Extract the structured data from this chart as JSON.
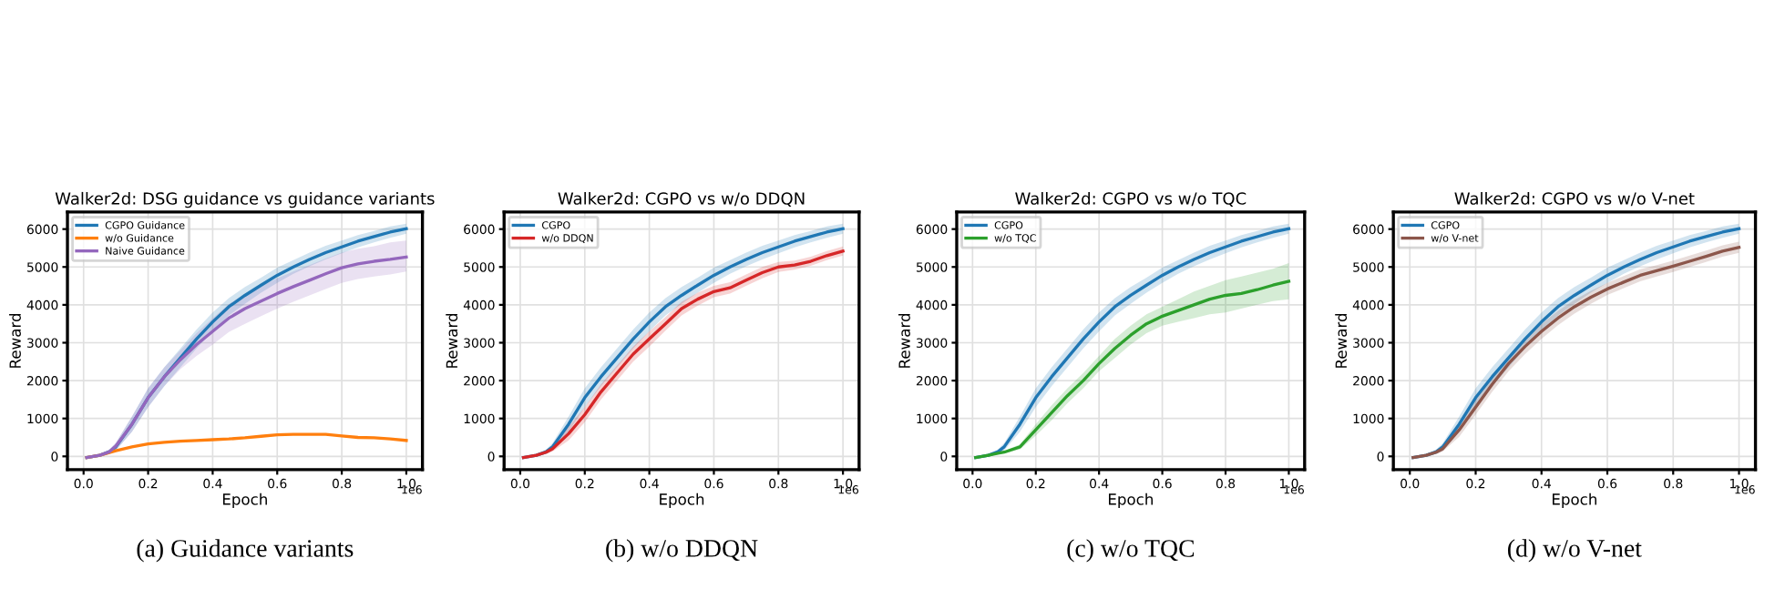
{
  "chart_data": [
    {
      "type": "line",
      "title": "Walker2d: DSG guidance vs guidance variants",
      "xlabel": "Epoch",
      "ylabel": "Reward",
      "annotations": [
        "1e6",
        "(a) Guidance variants"
      ],
      "x": [
        0.01,
        0.05,
        0.08,
        0.1,
        0.15,
        0.2,
        0.25,
        0.3,
        0.35,
        0.4,
        0.45,
        0.5,
        0.55,
        0.6,
        0.65,
        0.7,
        0.75,
        0.8,
        0.85,
        0.9,
        0.95,
        1.0
      ],
      "series": [
        {
          "name": "CGPO Guidance",
          "color": "#1f77b4",
          "values": [
            -30,
            30,
            120,
            250,
            850,
            1550,
            2100,
            2600,
            3100,
            3550,
            3950,
            4250,
            4520,
            4780,
            5000,
            5200,
            5380,
            5530,
            5680,
            5800,
            5920,
            6010
          ],
          "lower": [
            -50,
            0,
            60,
            150,
            650,
            1300,
            1850,
            2350,
            2850,
            3300,
            3720,
            4030,
            4320,
            4580,
            4820,
            5020,
            5200,
            5360,
            5520,
            5650,
            5770,
            5880
          ],
          "upper": [
            -10,
            60,
            180,
            350,
            1050,
            1800,
            2350,
            2850,
            3350,
            3800,
            4180,
            4470,
            4720,
            4980,
            5180,
            5380,
            5560,
            5700,
            5840,
            5950,
            6070,
            6140
          ]
        },
        {
          "name": "w/o Guidance",
          "color": "#ff7f0e",
          "values": [
            -30,
            30,
            100,
            150,
            250,
            330,
            370,
            400,
            420,
            440,
            460,
            490,
            530,
            570,
            580,
            580,
            580,
            540,
            500,
            490,
            460,
            420
          ]
        },
        {
          "name": "Naive Guidance",
          "color": "#9467bd",
          "values": [
            -30,
            30,
            120,
            270,
            850,
            1550,
            2100,
            2550,
            2950,
            3300,
            3650,
            3900,
            4100,
            4300,
            4480,
            4650,
            4820,
            4980,
            5080,
            5150,
            5200,
            5260
          ],
          "lower": [
            -50,
            0,
            60,
            170,
            650,
            1300,
            1850,
            2300,
            2650,
            2950,
            3280,
            3500,
            3700,
            3900,
            4080,
            4250,
            4420,
            4580,
            4680,
            4750,
            4800,
            4880
          ],
          "upper": [
            -10,
            60,
            180,
            370,
            1050,
            1800,
            2350,
            2800,
            3250,
            3650,
            4020,
            4300,
            4500,
            4700,
            4880,
            5050,
            5220,
            5380,
            5480,
            5550,
            5650,
            5700
          ]
        }
      ],
      "xlim": [
        -0.05,
        1.05
      ],
      "ylim": [
        -350,
        6450
      ],
      "xticks": [
        {
          "value": 0,
          "label": "0.0"
        },
        {
          "value": 0.2,
          "label": "0.2"
        },
        {
          "value": 0.4,
          "label": "0.4"
        },
        {
          "value": 0.6,
          "label": "0.6"
        },
        {
          "value": 0.8,
          "label": "0.8"
        },
        {
          "value": 1,
          "label": "1.0"
        }
      ],
      "yticks": [
        0,
        1000,
        2000,
        3000,
        4000,
        5000,
        6000
      ],
      "grid": true,
      "legend": "top left",
      "line_style": "solid",
      "marker": "none"
    },
    {
      "type": "line",
      "title": "Walker2d: CGPO vs w/o DDQN",
      "xlabel": "Epoch",
      "ylabel": "Reward",
      "annotations": [
        "1e6",
        "(b) w/o DDQN"
      ],
      "x": [
        0.01,
        0.05,
        0.08,
        0.1,
        0.15,
        0.2,
        0.25,
        0.3,
        0.35,
        0.4,
        0.45,
        0.5,
        0.55,
        0.6,
        0.65,
        0.7,
        0.75,
        0.8,
        0.85,
        0.9,
        0.95,
        1.0
      ],
      "series": [
        {
          "name": "CGPO",
          "color": "#1f77b4",
          "values": [
            -30,
            30,
            120,
            250,
            850,
            1550,
            2100,
            2600,
            3100,
            3550,
            3950,
            4250,
            4520,
            4780,
            5000,
            5200,
            5380,
            5530,
            5680,
            5800,
            5920,
            6010
          ],
          "lower": [
            -50,
            0,
            60,
            150,
            650,
            1300,
            1850,
            2350,
            2850,
            3300,
            3720,
            4030,
            4320,
            4580,
            4820,
            5020,
            5200,
            5360,
            5520,
            5650,
            5770,
            5880
          ],
          "upper": [
            -10,
            60,
            180,
            350,
            1050,
            1800,
            2350,
            2850,
            3350,
            3800,
            4180,
            4470,
            4720,
            4980,
            5180,
            5380,
            5560,
            5700,
            5840,
            5950,
            6070,
            6140
          ]
        },
        {
          "name": "w/o DDQN",
          "color": "#d62728",
          "values": [
            -30,
            30,
            110,
            200,
            600,
            1100,
            1700,
            2200,
            2700,
            3100,
            3500,
            3900,
            4150,
            4350,
            4450,
            4650,
            4850,
            5000,
            5050,
            5150,
            5300,
            5420
          ],
          "lower": [
            -50,
            0,
            60,
            130,
            420,
            900,
            1500,
            2000,
            2500,
            2900,
            3320,
            3720,
            3980,
            4200,
            4300,
            4500,
            4700,
            4870,
            4930,
            5030,
            5180,
            5300
          ],
          "upper": [
            -10,
            60,
            160,
            270,
            780,
            1300,
            1900,
            2400,
            2900,
            3300,
            3680,
            4080,
            4320,
            4500,
            4600,
            4800,
            5000,
            5130,
            5170,
            5270,
            5420,
            5540
          ]
        }
      ],
      "xlim": [
        -0.05,
        1.05
      ],
      "ylim": [
        -350,
        6450
      ],
      "xticks": [
        {
          "value": 0,
          "label": "0.0"
        },
        {
          "value": 0.2,
          "label": "0.2"
        },
        {
          "value": 0.4,
          "label": "0.4"
        },
        {
          "value": 0.6,
          "label": "0.6"
        },
        {
          "value": 0.8,
          "label": "0.8"
        },
        {
          "value": 1,
          "label": "1.0"
        }
      ],
      "yticks": [
        0,
        1000,
        2000,
        3000,
        4000,
        5000,
        6000
      ],
      "grid": true,
      "legend": "top left",
      "line_style": "solid",
      "marker": "none"
    },
    {
      "type": "line",
      "title": "Walker2d: CGPO vs w/o TQC",
      "xlabel": "Epoch",
      "ylabel": "Reward",
      "annotations": [
        "1e6",
        "(c) w/o TQC"
      ],
      "x": [
        0.01,
        0.05,
        0.08,
        0.1,
        0.15,
        0.2,
        0.25,
        0.3,
        0.35,
        0.4,
        0.45,
        0.5,
        0.55,
        0.6,
        0.65,
        0.7,
        0.75,
        0.8,
        0.85,
        0.9,
        0.95,
        1.0
      ],
      "series": [
        {
          "name": "CGPO",
          "color": "#1f77b4",
          "values": [
            -30,
            30,
            120,
            250,
            850,
            1550,
            2100,
            2600,
            3100,
            3550,
            3950,
            4250,
            4520,
            4780,
            5000,
            5200,
            5380,
            5530,
            5680,
            5800,
            5920,
            6010
          ],
          "lower": [
            -50,
            0,
            60,
            150,
            650,
            1300,
            1850,
            2350,
            2850,
            3300,
            3720,
            4030,
            4320,
            4580,
            4820,
            5020,
            5200,
            5360,
            5520,
            5650,
            5770,
            5880
          ],
          "upper": [
            -10,
            60,
            180,
            350,
            1050,
            1800,
            2350,
            2850,
            3350,
            3800,
            4180,
            4470,
            4720,
            4980,
            5180,
            5380,
            5560,
            5700,
            5840,
            5950,
            6070,
            6140
          ]
        },
        {
          "name": "w/o TQC",
          "color": "#2ca02c",
          "values": [
            -30,
            30,
            80,
            110,
            250,
            700,
            1150,
            1600,
            2000,
            2450,
            2850,
            3200,
            3500,
            3700,
            3850,
            4000,
            4150,
            4250,
            4300,
            4400,
            4520,
            4620
          ],
          "lower": [
            -50,
            0,
            50,
            80,
            180,
            550,
            950,
            1400,
            1800,
            2250,
            2600,
            2950,
            3250,
            3450,
            3550,
            3650,
            3750,
            3800,
            3900,
            4000,
            4100,
            4150
          ],
          "upper": [
            -10,
            60,
            110,
            140,
            320,
            850,
            1350,
            1800,
            2200,
            2650,
            3100,
            3450,
            3750,
            3950,
            4150,
            4350,
            4500,
            4650,
            4750,
            4850,
            4950,
            5100
          ]
        }
      ],
      "xlim": [
        -0.05,
        1.05
      ],
      "ylim": [
        -350,
        6450
      ],
      "xticks": [
        {
          "value": 0,
          "label": "0.0"
        },
        {
          "value": 0.2,
          "label": "0.2"
        },
        {
          "value": 0.4,
          "label": "0.4"
        },
        {
          "value": 0.6,
          "label": "0.6"
        },
        {
          "value": 0.8,
          "label": "0.8"
        },
        {
          "value": 1,
          "label": "1.0"
        }
      ],
      "yticks": [
        0,
        1000,
        2000,
        3000,
        4000,
        5000,
        6000
      ],
      "grid": true,
      "legend": "top left",
      "line_style": "solid",
      "marker": "none"
    },
    {
      "type": "line",
      "title": "Walker2d: CGPO vs w/o V-net",
      "xlabel": "Epoch",
      "ylabel": "Reward",
      "annotations": [
        "1e6",
        "(d) w/o V-net"
      ],
      "x": [
        0.01,
        0.05,
        0.08,
        0.1,
        0.15,
        0.2,
        0.25,
        0.3,
        0.35,
        0.4,
        0.45,
        0.5,
        0.55,
        0.6,
        0.65,
        0.7,
        0.75,
        0.8,
        0.85,
        0.9,
        0.95,
        1.0
      ],
      "series": [
        {
          "name": "CGPO",
          "color": "#1f77b4",
          "values": [
            -30,
            30,
            120,
            250,
            850,
            1550,
            2100,
            2600,
            3100,
            3550,
            3950,
            4250,
            4520,
            4780,
            5000,
            5200,
            5380,
            5530,
            5680,
            5800,
            5920,
            6010
          ],
          "lower": [
            -50,
            0,
            60,
            150,
            650,
            1300,
            1850,
            2350,
            2850,
            3300,
            3720,
            4030,
            4320,
            4580,
            4820,
            5020,
            5200,
            5360,
            5520,
            5650,
            5770,
            5880
          ],
          "upper": [
            -10,
            60,
            180,
            350,
            1050,
            1800,
            2350,
            2850,
            3350,
            3800,
            4180,
            4470,
            4720,
            4980,
            5180,
            5380,
            5560,
            5700,
            5840,
            5950,
            6070,
            6140
          ]
        },
        {
          "name": "w/o V-net",
          "color": "#8c564b",
          "values": [
            -30,
            30,
            110,
            200,
            700,
            1300,
            1900,
            2450,
            2900,
            3300,
            3650,
            3950,
            4200,
            4420,
            4600,
            4780,
            4900,
            5020,
            5150,
            5280,
            5420,
            5520
          ],
          "lower": [
            -50,
            0,
            60,
            130,
            520,
            1100,
            1700,
            2250,
            2700,
            3100,
            3460,
            3770,
            4030,
            4260,
            4440,
            4620,
            4750,
            4870,
            5000,
            5130,
            5270,
            5370
          ],
          "upper": [
            -10,
            60,
            160,
            270,
            880,
            1500,
            2100,
            2650,
            3100,
            3500,
            3840,
            4130,
            4370,
            4580,
            4760,
            4940,
            5050,
            5170,
            5300,
            5430,
            5570,
            5670
          ]
        }
      ],
      "xlim": [
        -0.05,
        1.05
      ],
      "ylim": [
        -350,
        6450
      ],
      "xticks": [
        {
          "value": 0,
          "label": "0.0"
        },
        {
          "value": 0.2,
          "label": "0.2"
        },
        {
          "value": 0.4,
          "label": "0.4"
        },
        {
          "value": 0.6,
          "label": "0.6"
        },
        {
          "value": 0.8,
          "label": "0.8"
        },
        {
          "value": 1,
          "label": "1.0"
        }
      ],
      "yticks": [
        0,
        1000,
        2000,
        3000,
        4000,
        5000,
        6000
      ],
      "grid": true,
      "legend": "top left",
      "line_style": "solid",
      "marker": "none"
    }
  ]
}
